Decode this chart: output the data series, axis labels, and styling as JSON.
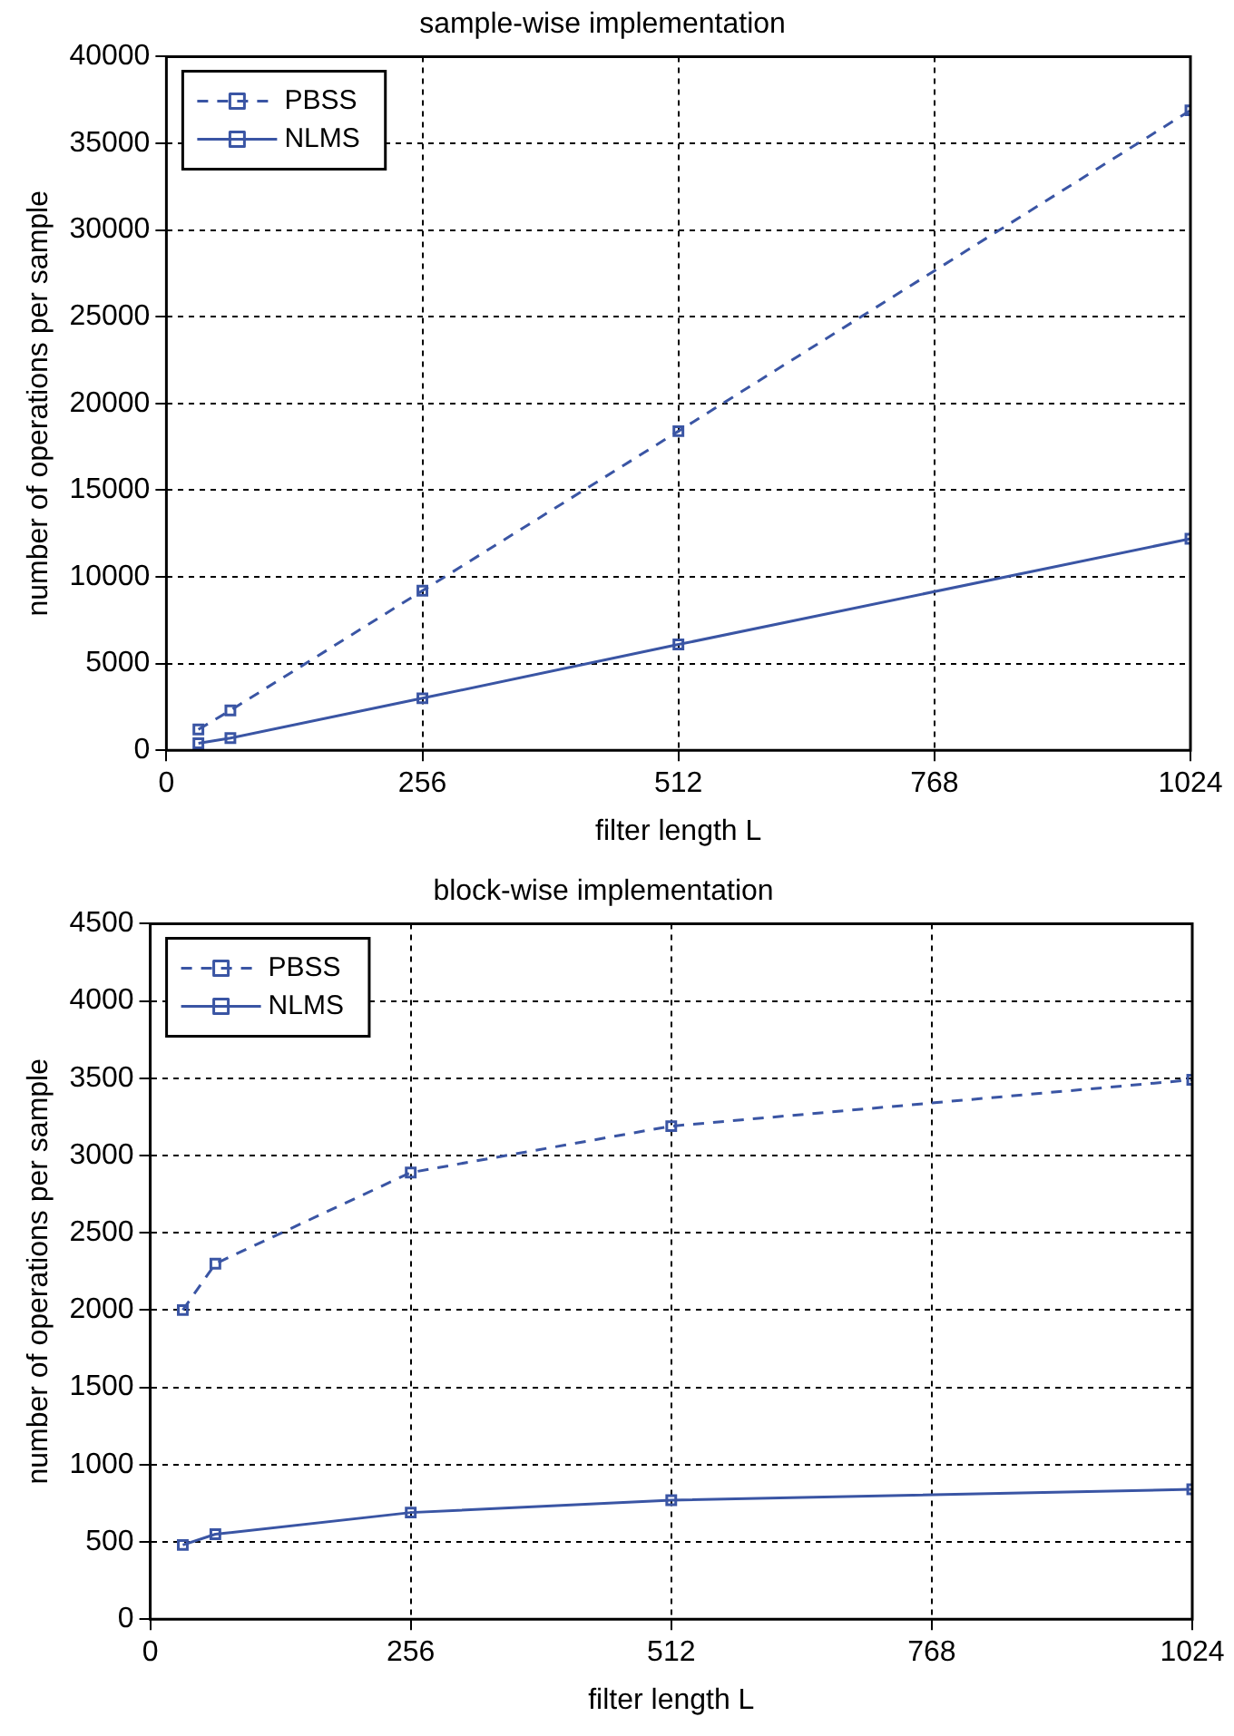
{
  "chart_data": [
    {
      "type": "line",
      "title": "sample-wise implementation",
      "xlabel": "filter length L",
      "ylabel": "number of operations per sample",
      "x": [
        32,
        64,
        256,
        512,
        1024
      ],
      "xlim": [
        0,
        1024
      ],
      "xticks": [
        0,
        256,
        512,
        768,
        1024
      ],
      "ylim": [
        0,
        40000
      ],
      "yticks": [
        0,
        5000,
        10000,
        15000,
        20000,
        25000,
        30000,
        35000,
        40000
      ],
      "grid": true,
      "legend": "top left",
      "marker": "square",
      "series": [
        {
          "name": "PBSS",
          "color": "#3a55a4",
          "line_style": "dashed",
          "values": [
            1200,
            2300,
            9200,
            18400,
            36900
          ]
        },
        {
          "name": "NLMS",
          "color": "#3a55a4",
          "line_style": "solid",
          "values": [
            400,
            700,
            3000,
            6100,
            12200
          ]
        }
      ]
    },
    {
      "type": "line",
      "title": "block-wise implementation",
      "xlabel": "filter length L",
      "ylabel": "number of operations per sample",
      "x": [
        32,
        64,
        256,
        512,
        1024
      ],
      "xlim": [
        0,
        1024
      ],
      "xticks": [
        0,
        256,
        512,
        768,
        1024
      ],
      "ylim": [
        0,
        4500
      ],
      "yticks": [
        0,
        500,
        1000,
        1500,
        2000,
        2500,
        3000,
        3500,
        4000,
        4500
      ],
      "grid": true,
      "legend": "top left",
      "marker": "square",
      "series": [
        {
          "name": "PBSS",
          "color": "#3a55a4",
          "line_style": "dashed",
          "values": [
            2000,
            2300,
            2890,
            3190,
            3490
          ]
        },
        {
          "name": "NLMS",
          "color": "#3a55a4",
          "line_style": "solid",
          "values": [
            480,
            550,
            690,
            770,
            840
          ]
        }
      ]
    }
  ]
}
